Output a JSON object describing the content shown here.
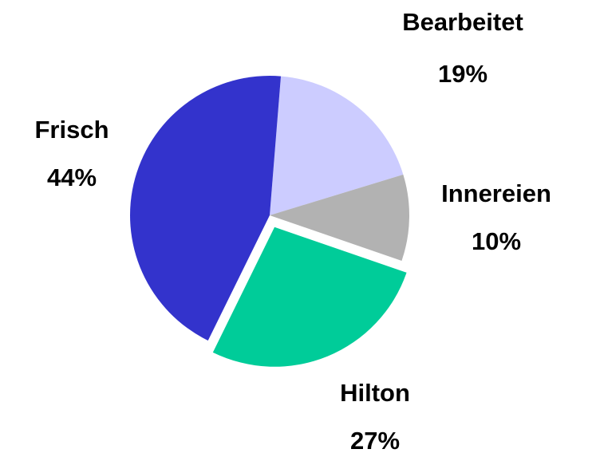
{
  "chart_data": {
    "type": "pie",
    "categories": [
      "Bearbeitet",
      "Innereien",
      "Hilton",
      "Frisch"
    ],
    "values": [
      19,
      10,
      27,
      44
    ],
    "value_labels": [
      "19%",
      "10%",
      "27%",
      "44%"
    ],
    "colors": [
      "#ccccff",
      "#b2b2b2",
      "#00cc99",
      "#3333cc"
    ],
    "exploded": [
      false,
      false,
      true,
      false
    ]
  }
}
